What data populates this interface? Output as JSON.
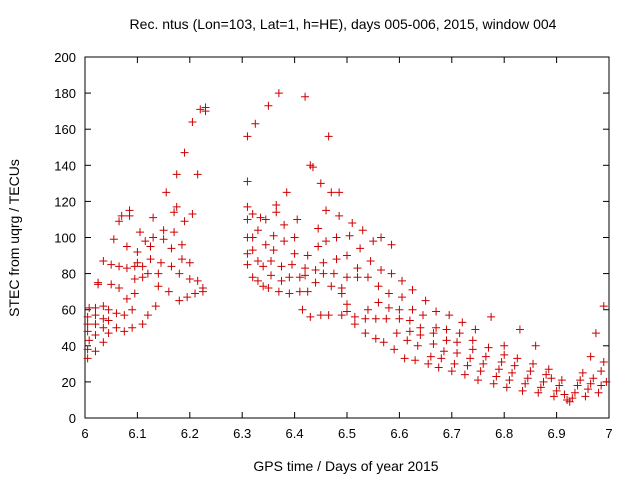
{
  "chart_data": {
    "type": "scatter",
    "title": "Rec. ntus (Lon=103, Lat=1, h=HE), days 005-006, 2015, window 004",
    "xlabel": "GPS time / Days of year 2015",
    "ylabel": "STEC from uqrg / TECUs",
    "xlim": [
      6,
      7
    ],
    "ylim": [
      0,
      200
    ],
    "x_ticks": [
      "6",
      "6.1",
      "6.2",
      "6.3",
      "6.4",
      "6.5",
      "6.6",
      "6.7",
      "6.8",
      "6.9",
      "7"
    ],
    "y_ticks": [
      "0",
      "20",
      "40",
      "60",
      "80",
      "100",
      "120",
      "140",
      "160",
      "180",
      "200"
    ],
    "grid": false,
    "legend": "none",
    "marker": "plus",
    "color": "#cc0000",
    "points": [
      [
        6.005,
        33
      ],
      [
        6.005,
        38
      ],
      [
        6.008,
        43
      ],
      [
        6.005,
        48
      ],
      [
        6.005,
        52
      ],
      [
        6.005,
        56
      ],
      [
        6.008,
        61
      ],
      [
        6.02,
        37
      ],
      [
        6.02,
        46
      ],
      [
        6.02,
        52
      ],
      [
        6.02,
        57
      ],
      [
        6.02,
        61
      ],
      [
        6.025,
        74
      ],
      [
        6.025,
        75
      ],
      [
        6.035,
        42
      ],
      [
        6.035,
        50
      ],
      [
        6.035,
        55
      ],
      [
        6.035,
        62
      ],
      [
        6.035,
        87
      ],
      [
        6.045,
        47
      ],
      [
        6.045,
        54
      ],
      [
        6.045,
        60
      ],
      [
        6.05,
        74
      ],
      [
        6.05,
        85
      ],
      [
        6.055,
        99
      ],
      [
        6.06,
        50
      ],
      [
        6.06,
        58
      ],
      [
        6.065,
        72
      ],
      [
        6.065,
        84
      ],
      [
        6.065,
        109
      ],
      [
        6.07,
        112
      ],
      [
        6.075,
        48
      ],
      [
        6.075,
        57
      ],
      [
        6.08,
        66
      ],
      [
        6.08,
        83
      ],
      [
        6.08,
        95
      ],
      [
        6.085,
        112
      ],
      [
        6.085,
        115
      ],
      [
        6.09,
        50
      ],
      [
        6.09,
        60
      ],
      [
        6.095,
        69
      ],
      [
        6.095,
        77
      ],
      [
        6.095,
        84
      ],
      [
        6.1,
        86
      ],
      [
        6.1,
        92
      ],
      [
        6.105,
        103
      ],
      [
        6.11,
        52
      ],
      [
        6.11,
        78
      ],
      [
        6.11,
        84
      ],
      [
        6.115,
        98
      ],
      [
        6.12,
        57
      ],
      [
        6.12,
        80
      ],
      [
        6.125,
        88
      ],
      [
        6.125,
        95
      ],
      [
        6.13,
        100
      ],
      [
        6.13,
        111
      ],
      [
        6.135,
        62
      ],
      [
        6.14,
        73
      ],
      [
        6.14,
        80
      ],
      [
        6.145,
        86
      ],
      [
        6.15,
        99
      ],
      [
        6.15,
        104
      ],
      [
        6.155,
        125
      ],
      [
        6.16,
        70
      ],
      [
        6.165,
        84
      ],
      [
        6.165,
        94
      ],
      [
        6.17,
        103
      ],
      [
        6.17,
        114
      ],
      [
        6.175,
        117
      ],
      [
        6.175,
        135
      ],
      [
        6.18,
        65
      ],
      [
        6.18,
        80
      ],
      [
        6.185,
        88
      ],
      [
        6.185,
        96
      ],
      [
        6.19,
        109
      ],
      [
        6.19,
        147
      ],
      [
        6.195,
        67
      ],
      [
        6.2,
        77
      ],
      [
        6.2,
        86
      ],
      [
        6.205,
        113
      ],
      [
        6.205,
        164
      ],
      [
        6.21,
        69
      ],
      [
        6.215,
        76
      ],
      [
        6.215,
        135
      ],
      [
        6.22,
        171
      ],
      [
        6.225,
        72
      ],
      [
        6.225,
        70
      ],
      [
        6.23,
        170
      ],
      [
        6.23,
        172
      ],
      [
        6.31,
        156
      ],
      [
        6.31,
        131
      ],
      [
        6.31,
        117
      ],
      [
        6.31,
        110
      ],
      [
        6.31,
        100
      ],
      [
        6.31,
        91
      ],
      [
        6.31,
        85
      ],
      [
        6.32,
        78
      ],
      [
        6.32,
        93
      ],
      [
        6.32,
        100
      ],
      [
        6.32,
        113
      ],
      [
        6.325,
        163
      ],
      [
        6.33,
        76
      ],
      [
        6.33,
        87
      ],
      [
        6.33,
        104
      ],
      [
        6.335,
        111
      ],
      [
        6.34,
        73
      ],
      [
        6.34,
        84
      ],
      [
        6.345,
        96
      ],
      [
        6.345,
        110
      ],
      [
        6.35,
        173
      ],
      [
        6.35,
        72
      ],
      [
        6.355,
        79
      ],
      [
        6.355,
        87
      ],
      [
        6.36,
        93
      ],
      [
        6.36,
        101
      ],
      [
        6.365,
        114
      ],
      [
        6.365,
        118
      ],
      [
        6.37,
        180
      ],
      [
        6.37,
        70
      ],
      [
        6.375,
        76
      ],
      [
        6.375,
        84
      ],
      [
        6.38,
        98
      ],
      [
        6.38,
        107
      ],
      [
        6.385,
        125
      ],
      [
        6.39,
        69
      ],
      [
        6.39,
        78
      ],
      [
        6.395,
        85
      ],
      [
        6.4,
        91
      ],
      [
        6.4,
        100
      ],
      [
        6.405,
        110
      ],
      [
        6.41,
        70
      ],
      [
        6.41,
        78
      ],
      [
        6.415,
        60
      ],
      [
        6.42,
        178
      ],
      [
        6.42,
        79
      ],
      [
        6.42,
        83
      ],
      [
        6.425,
        70
      ],
      [
        6.425,
        90
      ],
      [
        6.43,
        56
      ],
      [
        6.43,
        140
      ],
      [
        6.435,
        139
      ],
      [
        6.44,
        75
      ],
      [
        6.44,
        82
      ],
      [
        6.445,
        95
      ],
      [
        6.445,
        105
      ],
      [
        6.45,
        57
      ],
      [
        6.45,
        130
      ],
      [
        6.455,
        80
      ],
      [
        6.455,
        86
      ],
      [
        6.46,
        98
      ],
      [
        6.46,
        115
      ],
      [
        6.465,
        57
      ],
      [
        6.465,
        156
      ],
      [
        6.47,
        125
      ],
      [
        6.47,
        73
      ],
      [
        6.475,
        80
      ],
      [
        6.48,
        88
      ],
      [
        6.48,
        100
      ],
      [
        6.485,
        112
      ],
      [
        6.485,
        125
      ],
      [
        6.49,
        57
      ],
      [
        6.49,
        69
      ],
      [
        6.49,
        72
      ],
      [
        6.5,
        59
      ],
      [
        6.5,
        63
      ],
      [
        6.5,
        78
      ],
      [
        6.5,
        90
      ],
      [
        6.505,
        101
      ],
      [
        6.51,
        108
      ],
      [
        6.515,
        52
      ],
      [
        6.515,
        56
      ],
      [
        6.52,
        78
      ],
      [
        6.52,
        83
      ],
      [
        6.525,
        94
      ],
      [
        6.53,
        104
      ],
      [
        6.535,
        47
      ],
      [
        6.535,
        55
      ],
      [
        6.54,
        60
      ],
      [
        6.54,
        78
      ],
      [
        6.545,
        87
      ],
      [
        6.55,
        98
      ],
      [
        6.555,
        44
      ],
      [
        6.555,
        55
      ],
      [
        6.56,
        64
      ],
      [
        6.56,
        73
      ],
      [
        6.565,
        82
      ],
      [
        6.565,
        100
      ],
      [
        6.57,
        42
      ],
      [
        6.575,
        55
      ],
      [
        6.58,
        61
      ],
      [
        6.58,
        69
      ],
      [
        6.585,
        80
      ],
      [
        6.585,
        96
      ],
      [
        6.59,
        38
      ],
      [
        6.595,
        47
      ],
      [
        6.6,
        55
      ],
      [
        6.6,
        60
      ],
      [
        6.605,
        67
      ],
      [
        6.605,
        76
      ],
      [
        6.61,
        33
      ],
      [
        6.615,
        43
      ],
      [
        6.62,
        48
      ],
      [
        6.62,
        54
      ],
      [
        6.625,
        60
      ],
      [
        6.625,
        71
      ],
      [
        6.63,
        32
      ],
      [
        6.635,
        40
      ],
      [
        6.64,
        46
      ],
      [
        6.64,
        50
      ],
      [
        6.645,
        57
      ],
      [
        6.65,
        65
      ],
      [
        6.655,
        30
      ],
      [
        6.66,
        34
      ],
      [
        6.665,
        41
      ],
      [
        6.665,
        47
      ],
      [
        6.67,
        50
      ],
      [
        6.67,
        59
      ],
      [
        6.675,
        28
      ],
      [
        6.68,
        33
      ],
      [
        6.685,
        37
      ],
      [
        6.69,
        43
      ],
      [
        6.69,
        49
      ],
      [
        6.695,
        57
      ],
      [
        6.7,
        26
      ],
      [
        6.705,
        30
      ],
      [
        6.71,
        36
      ],
      [
        6.71,
        42
      ],
      [
        6.715,
        47
      ],
      [
        6.72,
        53
      ],
      [
        6.725,
        24
      ],
      [
        6.73,
        29
      ],
      [
        6.735,
        33
      ],
      [
        6.74,
        38
      ],
      [
        6.74,
        43
      ],
      [
        6.745,
        49
      ],
      [
        6.75,
        21
      ],
      [
        6.755,
        26
      ],
      [
        6.76,
        30
      ],
      [
        6.765,
        34
      ],
      [
        6.77,
        39
      ],
      [
        6.775,
        56
      ],
      [
        6.78,
        19
      ],
      [
        6.785,
        23
      ],
      [
        6.79,
        27
      ],
      [
        6.795,
        31
      ],
      [
        6.8,
        35
      ],
      [
        6.8,
        40
      ],
      [
        6.805,
        17
      ],
      [
        6.81,
        21
      ],
      [
        6.815,
        25
      ],
      [
        6.82,
        29
      ],
      [
        6.825,
        33
      ],
      [
        6.83,
        49
      ],
      [
        6.835,
        15
      ],
      [
        6.84,
        19
      ],
      [
        6.845,
        22
      ],
      [
        6.85,
        26
      ],
      [
        6.855,
        30
      ],
      [
        6.86,
        40
      ],
      [
        6.865,
        14
      ],
      [
        6.87,
        17
      ],
      [
        6.875,
        20
      ],
      [
        6.88,
        24
      ],
      [
        6.885,
        27
      ],
      [
        6.89,
        22
      ],
      [
        6.895,
        12
      ],
      [
        6.9,
        15
      ],
      [
        6.905,
        18
      ],
      [
        6.91,
        21
      ],
      [
        6.915,
        13
      ],
      [
        6.92,
        10
      ],
      [
        6.925,
        9
      ],
      [
        6.93,
        11
      ],
      [
        6.935,
        14
      ],
      [
        6.94,
        18
      ],
      [
        6.945,
        21
      ],
      [
        6.95,
        25
      ],
      [
        6.955,
        12
      ],
      [
        6.96,
        16
      ],
      [
        6.965,
        19
      ],
      [
        6.965,
        34
      ],
      [
        6.97,
        22
      ],
      [
        6.975,
        47
      ],
      [
        6.98,
        14
      ],
      [
        6.985,
        18
      ],
      [
        6.985,
        26
      ],
      [
        6.99,
        31
      ],
      [
        6.99,
        62
      ],
      [
        6.995,
        20
      ]
    ]
  }
}
